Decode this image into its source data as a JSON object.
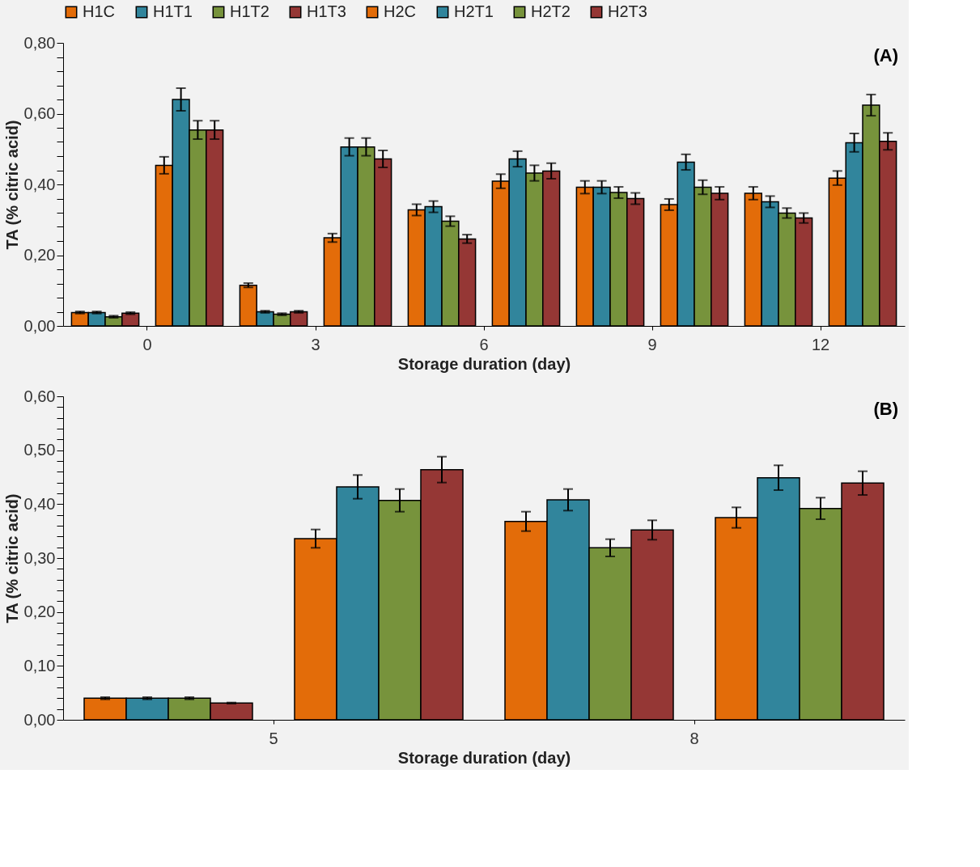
{
  "chart_data": [
    {
      "type": "bar",
      "xlabel": "Storage duration (day)",
      "ylabel": "TA (% citric acid)",
      "annotations": [
        "(A)"
      ],
      "legend": "top",
      "categories": [
        "0",
        "3",
        "6",
        "9",
        "12"
      ],
      "ylim": [
        0,
        0.8
      ],
      "yticks": [
        {
          "value": 0,
          "label": "0,00"
        },
        {
          "value": 0.04,
          "label": null
        },
        {
          "value": 0.08,
          "label": null
        },
        {
          "value": 0.12,
          "label": null
        },
        {
          "value": 0.16,
          "label": null
        },
        {
          "value": 0.2,
          "label": "0,20"
        },
        {
          "value": 0.24,
          "label": null
        },
        {
          "value": 0.28,
          "label": null
        },
        {
          "value": 0.32,
          "label": null
        },
        {
          "value": 0.36,
          "label": null
        },
        {
          "value": 0.4,
          "label": "0,40"
        },
        {
          "value": 0.44,
          "label": null
        },
        {
          "value": 0.48,
          "label": null
        },
        {
          "value": 0.52,
          "label": null
        },
        {
          "value": 0.56,
          "label": null
        },
        {
          "value": 0.6,
          "label": "0,60"
        },
        {
          "value": 0.64,
          "label": null
        },
        {
          "value": 0.68,
          "label": null
        },
        {
          "value": 0.72,
          "label": null
        },
        {
          "value": 0.76,
          "label": null
        },
        {
          "value": 0.8,
          "label": "0,80"
        }
      ],
      "series": [
        {
          "name": "H1C",
          "color": "#e36c09",
          "values": [
            0.038,
            0.115,
            0.328,
            0.392,
            0.375
          ],
          "errors": [
            0.003,
            0.006,
            0.016,
            0.018,
            0.018
          ]
        },
        {
          "name": "H1T1",
          "color": "#31859c",
          "values": [
            0.038,
            0.04,
            0.337,
            0.392,
            0.351
          ],
          "errors": [
            0.003,
            0.003,
            0.016,
            0.018,
            0.016
          ]
        },
        {
          "name": "H1T2",
          "color": "#77933c",
          "values": [
            0.026,
            0.033,
            0.296,
            0.377,
            0.319
          ],
          "errors": [
            0.003,
            0.003,
            0.014,
            0.016,
            0.014
          ]
        },
        {
          "name": "H1T3",
          "color": "#953735",
          "values": [
            0.036,
            0.04,
            0.246,
            0.36,
            0.305
          ],
          "errors": [
            0.003,
            0.003,
            0.012,
            0.016,
            0.014
          ]
        },
        {
          "name": "H2C",
          "color": "#e36c09",
          "values": [
            0.454,
            0.249,
            0.409,
            0.343,
            0.418
          ],
          "errors": [
            0.024,
            0.012,
            0.02,
            0.016,
            0.02
          ]
        },
        {
          "name": "H2T1",
          "color": "#31859c",
          "values": [
            0.64,
            0.506,
            0.472,
            0.463,
            0.518
          ],
          "errors": [
            0.032,
            0.025,
            0.022,
            0.022,
            0.026
          ]
        },
        {
          "name": "H2T2",
          "color": "#77933c",
          "values": [
            0.554,
            0.506,
            0.432,
            0.392,
            0.624
          ],
          "errors": [
            0.026,
            0.025,
            0.022,
            0.02,
            0.03
          ]
        },
        {
          "name": "H2T3",
          "color": "#953735",
          "values": [
            0.554,
            0.472,
            0.438,
            0.375,
            0.522
          ],
          "errors": [
            0.026,
            0.024,
            0.022,
            0.018,
            0.024
          ]
        }
      ]
    },
    {
      "type": "bar",
      "xlabel": "Storage duration (day)",
      "ylabel": "TA (% citric acid)",
      "annotations": [
        "(B)"
      ],
      "categories": [
        "5",
        "8"
      ],
      "ylim": [
        0,
        0.6
      ],
      "yticks": [
        {
          "value": 0,
          "label": "0,00"
        },
        {
          "value": 0.02,
          "label": null
        },
        {
          "value": 0.04,
          "label": null
        },
        {
          "value": 0.06,
          "label": null
        },
        {
          "value": 0.08,
          "label": null
        },
        {
          "value": 0.1,
          "label": "0,10"
        },
        {
          "value": 0.12,
          "label": null
        },
        {
          "value": 0.14,
          "label": null
        },
        {
          "value": 0.16,
          "label": null
        },
        {
          "value": 0.18,
          "label": null
        },
        {
          "value": 0.2,
          "label": "0,20"
        },
        {
          "value": 0.22,
          "label": null
        },
        {
          "value": 0.24,
          "label": null
        },
        {
          "value": 0.26,
          "label": null
        },
        {
          "value": 0.28,
          "label": null
        },
        {
          "value": 0.3,
          "label": "0,30"
        },
        {
          "value": 0.32,
          "label": null
        },
        {
          "value": 0.34,
          "label": null
        },
        {
          "value": 0.36,
          "label": null
        },
        {
          "value": 0.38,
          "label": null
        },
        {
          "value": 0.4,
          "label": "0,40"
        },
        {
          "value": 0.42,
          "label": null
        },
        {
          "value": 0.44,
          "label": null
        },
        {
          "value": 0.46,
          "label": null
        },
        {
          "value": 0.48,
          "label": null
        },
        {
          "value": 0.5,
          "label": "0,50"
        },
        {
          "value": 0.52,
          "label": null
        },
        {
          "value": 0.54,
          "label": null
        },
        {
          "value": 0.56,
          "label": null
        },
        {
          "value": 0.58,
          "label": null
        },
        {
          "value": 0.6,
          "label": "0,60"
        }
      ],
      "series": [
        {
          "name": "H1C",
          "color": "#e36c09",
          "values": [
            0.04,
            0.368
          ],
          "errors": [
            0.002,
            0.018
          ]
        },
        {
          "name": "H1T1",
          "color": "#31859c",
          "values": [
            0.04,
            0.408
          ],
          "errors": [
            0.002,
            0.02
          ]
        },
        {
          "name": "H1T2",
          "color": "#77933c",
          "values": [
            0.04,
            0.319
          ],
          "errors": [
            0.002,
            0.016
          ]
        },
        {
          "name": "H1T3",
          "color": "#953735",
          "values": [
            0.031,
            0.352
          ],
          "errors": [
            0.001,
            0.018
          ]
        },
        {
          "name": "H2C",
          "color": "#e36c09",
          "values": [
            0.336,
            0.375
          ],
          "errors": [
            0.017,
            0.019
          ]
        },
        {
          "name": "H2T1",
          "color": "#31859c",
          "values": [
            0.432,
            0.449
          ],
          "errors": [
            0.022,
            0.023
          ]
        },
        {
          "name": "H2T2",
          "color": "#77933c",
          "values": [
            0.407,
            0.392
          ],
          "errors": [
            0.021,
            0.02
          ]
        },
        {
          "name": "H2T3",
          "color": "#953735",
          "values": [
            0.464,
            0.439
          ],
          "errors": [
            0.024,
            0.022
          ]
        }
      ]
    }
  ]
}
